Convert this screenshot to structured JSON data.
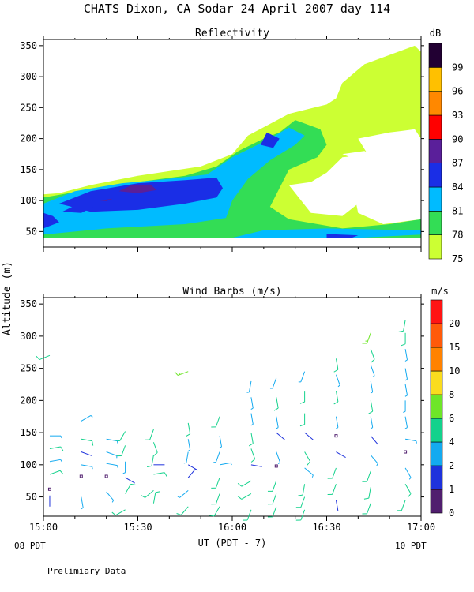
{
  "header": {
    "title": "CHATS Dixon, CA  Sodar  24 April 2007  day 114",
    "ylabel": "Altitude (m)",
    "xlabel": "UT  (PDT - 7)",
    "left_local": "08 PDT",
    "right_local": "10 PDT",
    "footer": "Prelimiary Data"
  },
  "chart_data": [
    {
      "type": "heatmap",
      "title": "Reflectivity",
      "xlabel": "UT  (PDT - 7)",
      "ylabel": "Altitude (m)",
      "x_ticks": [
        "15:00",
        "15:30",
        "16:00",
        "16:30",
        "17:00"
      ],
      "y_ticks": [
        50,
        100,
        150,
        200,
        250,
        300,
        350
      ],
      "ylim": [
        25,
        360
      ],
      "xlim_minutes": [
        0,
        120
      ],
      "colorbar": {
        "unit": "dB",
        "levels": [
          75,
          78,
          81,
          84,
          87,
          90,
          93,
          96,
          99
        ],
        "colors": [
          "#ccff33",
          "#33dd55",
          "#00bbff",
          "#1a2ee6",
          "#5a1f9a",
          "#ff0000",
          "#ff8800",
          "#ffc000",
          "#220033"
        ]
      },
      "contours": [
        {
          "level": 75,
          "color": "#ccff33",
          "points": [
            [
              0,
              40
            ],
            [
              0,
              110
            ],
            [
              5,
              112
            ],
            [
              15,
              125
            ],
            [
              30,
              140
            ],
            [
              50,
              155
            ],
            [
              60,
              175
            ],
            [
              65,
              205
            ],
            [
              78,
              240
            ],
            [
              90,
              255
            ],
            [
              93,
              265
            ],
            [
              95,
              290
            ],
            [
              102,
              320
            ],
            [
              118,
              350
            ],
            [
              120,
              340
            ],
            [
              120,
              40
            ]
          ]
        },
        {
          "level": 78,
          "color": "#33dd55",
          "points": [
            [
              0,
              40
            ],
            [
              0,
              105
            ],
            [
              15,
              118
            ],
            [
              30,
              130
            ],
            [
              45,
              140
            ],
            [
              55,
              155
            ],
            [
              62,
              180
            ],
            [
              70,
              200
            ],
            [
              75,
              210
            ],
            [
              80,
              230
            ],
            [
              88,
              215
            ],
            [
              90,
              190
            ],
            [
              87,
              170
            ],
            [
              78,
              150
            ],
            [
              75,
              120
            ],
            [
              72,
              90
            ],
            [
              78,
              70
            ],
            [
              95,
              55
            ],
            [
              110,
              62
            ],
            [
              120,
              70
            ],
            [
              120,
              40
            ]
          ]
        },
        {
          "level": 81,
          "color": "#00bbff",
          "points": [
            [
              0,
              45
            ],
            [
              0,
              95
            ],
            [
              10,
              115
            ],
            [
              25,
              128
            ],
            [
              40,
              135
            ],
            [
              52,
              142
            ],
            [
              60,
              170
            ],
            [
              68,
              190
            ],
            [
              72,
              200
            ],
            [
              78,
              218
            ],
            [
              83,
              205
            ],
            [
              80,
              190
            ],
            [
              72,
              165
            ],
            [
              65,
              135
            ],
            [
              60,
              100
            ],
            [
              58,
              72
            ],
            [
              45,
              62
            ],
            [
              20,
              55
            ],
            [
              0,
              45
            ]
          ]
        },
        {
          "level": 81,
          "color": "#00bbff",
          "points": [
            [
              60,
              40
            ],
            [
              100,
              40
            ],
            [
              120,
              45
            ],
            [
              120,
              52
            ],
            [
              90,
              55
            ],
            [
              70,
              52
            ]
          ]
        },
        {
          "level": 84,
          "color": "#1a2ee6",
          "points": [
            [
              5,
              95
            ],
            [
              15,
              115
            ],
            [
              30,
              128
            ],
            [
              45,
              133
            ],
            [
              55,
              137
            ],
            [
              57,
              120
            ],
            [
              55,
              105
            ],
            [
              45,
              95
            ],
            [
              30,
              85
            ],
            [
              15,
              82
            ]
          ]
        },
        {
          "level": 84,
          "color": "#1a2ee6",
          "points": [
            [
              0,
              55
            ],
            [
              5,
              65
            ],
            [
              3,
              75
            ],
            [
              0,
              80
            ]
          ]
        },
        {
          "level": 84,
          "color": "#1a2ee6",
          "points": [
            [
              6,
              82
            ],
            [
              10,
              92
            ],
            [
              16,
              90
            ],
            [
              12,
              80
            ]
          ]
        },
        {
          "level": 84,
          "color": "#1a2ee6",
          "points": [
            [
              69,
              190
            ],
            [
              71,
              210
            ],
            [
              75,
              200
            ],
            [
              73,
              185
            ]
          ]
        },
        {
          "level": 84,
          "color": "#1a2ee6",
          "points": [
            [
              90,
              40
            ],
            [
              98,
              40
            ],
            [
              100,
              44
            ],
            [
              90,
              46
            ]
          ]
        },
        {
          "level": 87,
          "color": "#5a1f9a",
          "points": [
            [
              24,
              115
            ],
            [
              28,
              125
            ],
            [
              34,
              126
            ],
            [
              36,
              117
            ],
            [
              30,
              112
            ]
          ]
        },
        {
          "level": 87,
          "color": "#5a1f9a",
          "points": [
            [
              18,
              100
            ],
            [
              22,
              103
            ],
            [
              20,
              99
            ]
          ]
        }
      ],
      "holes": [
        {
          "color": "#ffffff",
          "points": [
            [
              78,
              125
            ],
            [
              85,
              80
            ],
            [
              95,
              75
            ],
            [
              100,
              95
            ],
            [
              108,
              110
            ],
            [
              110,
              155
            ],
            [
              105,
              175
            ],
            [
              95,
              170
            ],
            [
              90,
              145
            ],
            [
              85,
              130
            ]
          ]
        },
        {
          "color": "#ffffff",
          "points": [
            [
              100,
              200
            ],
            [
              110,
              210
            ],
            [
              118,
              215
            ],
            [
              120,
              200
            ],
            [
              120,
              70
            ],
            [
              108,
              62
            ],
            [
              100,
              80
            ],
            [
              98,
              130
            ],
            [
              103,
              175
            ]
          ]
        },
        {
          "color": "#ffffff",
          "points": [
            [
              95,
              175
            ],
            [
              102,
              180
            ],
            [
              106,
              170
            ],
            [
              100,
              165
            ]
          ]
        }
      ]
    },
    {
      "type": "scatter",
      "title": "Wind Barbs (m/s)",
      "xlabel": "UT  (PDT - 7)",
      "ylabel": "Altitude (m)",
      "x_ticks": [
        "15:00",
        "15:30",
        "16:00",
        "16:30",
        "17:00"
      ],
      "y_ticks": [
        50,
        100,
        150,
        200,
        250,
        300,
        350
      ],
      "ylim": [
        20,
        360
      ],
      "xlim_minutes": [
        0,
        120
      ],
      "colorbar": {
        "unit": "m/s",
        "levels": [
          0,
          1,
          2,
          4,
          6,
          8,
          10,
          15,
          20
        ],
        "colors": [
          "#501e6e",
          "#1e32dc",
          "#14aaf0",
          "#14d28c",
          "#6ee628",
          "#fadc1e",
          "#ff8200",
          "#ff5a0a",
          "#ff1414"
        ]
      },
      "barbs": [
        [
          2,
          270,
          248,
          4
        ],
        [
          2,
          145,
          90,
          3
        ],
        [
          2,
          125,
          80,
          4
        ],
        [
          2,
          105,
          80,
          3
        ],
        [
          2,
          85,
          70,
          4
        ],
        [
          2,
          62,
          0,
          0
        ],
        [
          2,
          35,
          0,
          1
        ],
        [
          12,
          168,
          60,
          3
        ],
        [
          12,
          140,
          100,
          4
        ],
        [
          12,
          120,
          110,
          1
        ],
        [
          12,
          100,
          100,
          2
        ],
        [
          12,
          82,
          0,
          0
        ],
        [
          12,
          50,
          170,
          2
        ],
        [
          20,
          140,
          100,
          3
        ],
        [
          20,
          120,
          110,
          3
        ],
        [
          20,
          102,
          100,
          3
        ],
        [
          20,
          82,
          0,
          0
        ],
        [
          20,
          58,
          140,
          2
        ],
        [
          26,
          152,
          210,
          4
        ],
        [
          26,
          130,
          200,
          4
        ],
        [
          26,
          105,
          180,
          3
        ],
        [
          26,
          80,
          120,
          1
        ],
        [
          26,
          55,
          30,
          5
        ],
        [
          26,
          30,
          240,
          4
        ],
        [
          35,
          155,
          200,
          4
        ],
        [
          35,
          135,
          160,
          4
        ],
        [
          35,
          115,
          190,
          4
        ],
        [
          35,
          100,
          90,
          1
        ],
        [
          35,
          85,
          80,
          4
        ],
        [
          35,
          60,
          230,
          4
        ],
        [
          35,
          40,
          10,
          4
        ],
        [
          46,
          245,
          250,
          6
        ],
        [
          46,
          165,
          170,
          4
        ],
        [
          46,
          140,
          170,
          3
        ],
        [
          46,
          120,
          190,
          3
        ],
        [
          46,
          100,
          120,
          1
        ],
        [
          46,
          80,
          40,
          1
        ],
        [
          46,
          60,
          230,
          2
        ],
        [
          46,
          35,
          220,
          4
        ],
        [
          56,
          175,
          200,
          4
        ],
        [
          56,
          145,
          170,
          3
        ],
        [
          56,
          120,
          200,
          3
        ],
        [
          56,
          100,
          80,
          2
        ],
        [
          56,
          80,
          200,
          4
        ],
        [
          56,
          55,
          200,
          4
        ],
        [
          56,
          35,
          210,
          4
        ],
        [
          66,
          230,
          190,
          3
        ],
        [
          66,
          205,
          170,
          3
        ],
        [
          66,
          180,
          170,
          3
        ],
        [
          66,
          150,
          170,
          4
        ],
        [
          66,
          125,
          160,
          4
        ],
        [
          66,
          100,
          100,
          1
        ],
        [
          66,
          75,
          240,
          4
        ],
        [
          66,
          55,
          240,
          4
        ],
        [
          66,
          30,
          200,
          4
        ],
        [
          74,
          235,
          200,
          3
        ],
        [
          74,
          205,
          170,
          4
        ],
        [
          74,
          175,
          170,
          3
        ],
        [
          74,
          150,
          130,
          1
        ],
        [
          74,
          120,
          160,
          3
        ],
        [
          74,
          98,
          0,
          0
        ],
        [
          74,
          75,
          200,
          4
        ],
        [
          74,
          55,
          200,
          4
        ],
        [
          74,
          35,
          200,
          4
        ],
        [
          83,
          245,
          200,
          3
        ],
        [
          83,
          215,
          180,
          4
        ],
        [
          83,
          180,
          180,
          4
        ],
        [
          83,
          150,
          130,
          1
        ],
        [
          83,
          120,
          150,
          4
        ],
        [
          83,
          95,
          130,
          3
        ],
        [
          83,
          70,
          190,
          4
        ],
        [
          83,
          50,
          200,
          4
        ],
        [
          83,
          30,
          200,
          4
        ],
        [
          93,
          265,
          170,
          5
        ],
        [
          93,
          240,
          160,
          3
        ],
        [
          93,
          215,
          170,
          4
        ],
        [
          93,
          175,
          170,
          3
        ],
        [
          93,
          145,
          0,
          0
        ],
        [
          93,
          120,
          120,
          1
        ],
        [
          93,
          95,
          200,
          4
        ],
        [
          93,
          70,
          200,
          4
        ],
        [
          93,
          45,
          170,
          1
        ],
        [
          104,
          305,
          200,
          7
        ],
        [
          104,
          280,
          160,
          4
        ],
        [
          104,
          255,
          160,
          3
        ],
        [
          104,
          230,
          170,
          3
        ],
        [
          104,
          200,
          170,
          4
        ],
        [
          104,
          175,
          170,
          3
        ],
        [
          104,
          145,
          140,
          1
        ],
        [
          104,
          115,
          140,
          2
        ],
        [
          104,
          90,
          200,
          4
        ],
        [
          104,
          65,
          190,
          4
        ],
        [
          104,
          40,
          200,
          4
        ],
        [
          115,
          325,
          190,
          5
        ],
        [
          115,
          305,
          180,
          4
        ],
        [
          115,
          280,
          170,
          3
        ],
        [
          115,
          250,
          170,
          3
        ],
        [
          115,
          225,
          170,
          2
        ],
        [
          115,
          200,
          180,
          2
        ],
        [
          115,
          175,
          170,
          3
        ],
        [
          115,
          140,
          100,
          2
        ],
        [
          115,
          120,
          0,
          0
        ],
        [
          115,
          95,
          150,
          2
        ],
        [
          115,
          70,
          150,
          4
        ],
        [
          115,
          45,
          200,
          5
        ]
      ]
    }
  ]
}
